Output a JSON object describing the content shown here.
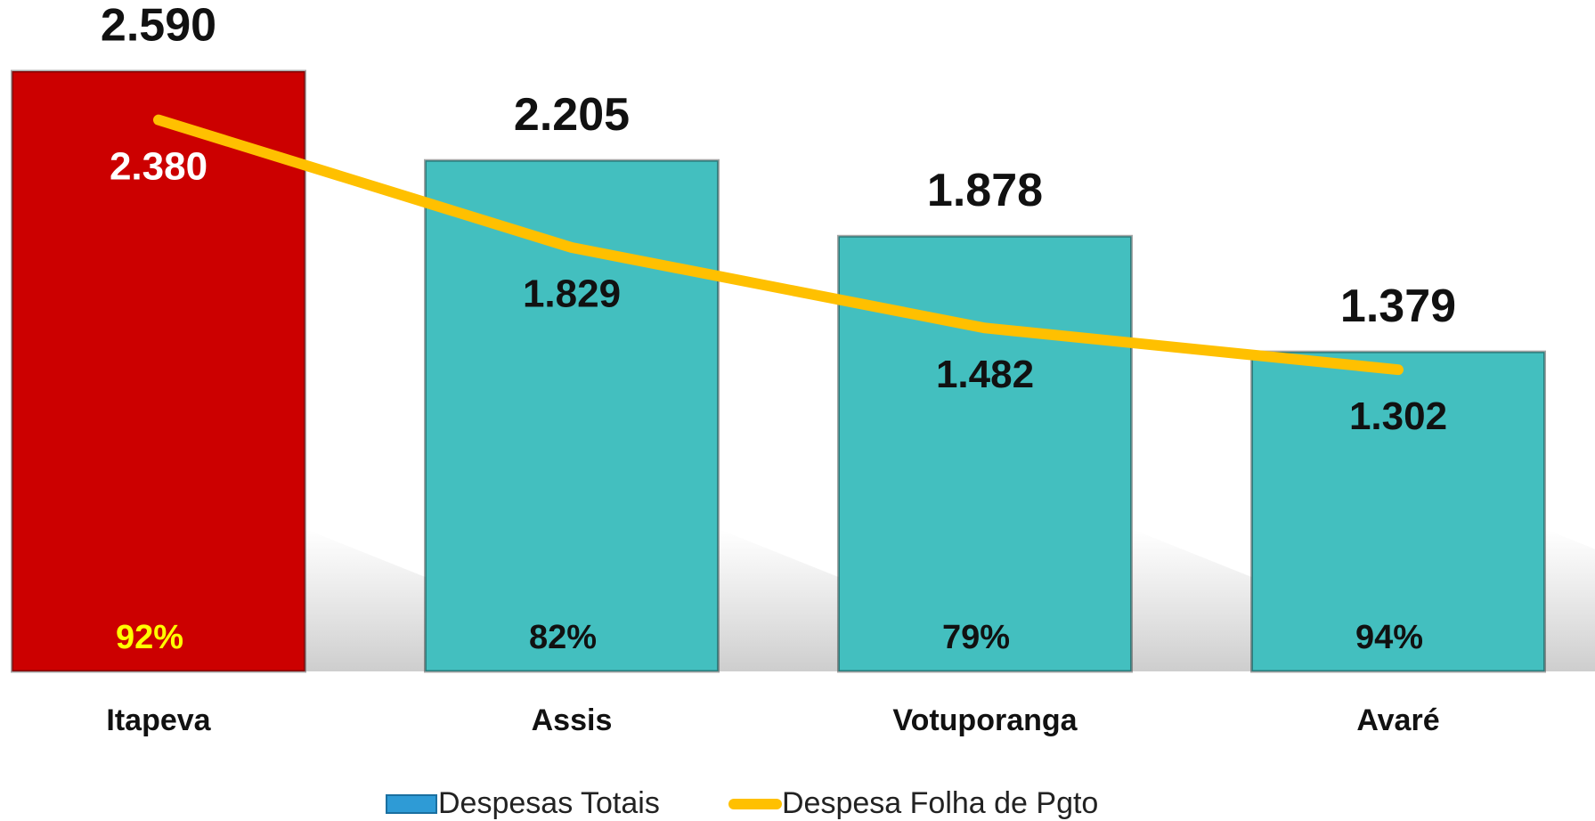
{
  "chart_data": {
    "type": "bar",
    "categories": [
      "Itapeva",
      "Assis",
      "Votuporanga",
      "Avaré"
    ],
    "series": [
      {
        "name": "Despesas Totais",
        "type": "bar",
        "color": "#2e9bd6",
        "point_colors": [
          "#cc0000",
          "#43bfbf",
          "#43bfbf",
          "#43bfbf"
        ],
        "values": [
          2590,
          2205,
          1878,
          1379
        ],
        "value_labels": [
          "2.590",
          "2.205",
          "1.878",
          "1.379"
        ]
      },
      {
        "name": "Despesa Folha de Pgto",
        "type": "line",
        "color": "#ffc000",
        "values": [
          2380,
          1829,
          1482,
          1302
        ],
        "value_labels": [
          "2.380",
          "1.829",
          "1.482",
          "1.302"
        ],
        "label_colors": [
          "#ffffff",
          "#111111",
          "#111111",
          "#111111"
        ]
      }
    ],
    "percent_labels": [
      "92%",
      "82%",
      "79%",
      "94%"
    ],
    "percent_label_colors": [
      "#ffff00",
      "#111111",
      "#111111",
      "#111111"
    ]
  }
}
